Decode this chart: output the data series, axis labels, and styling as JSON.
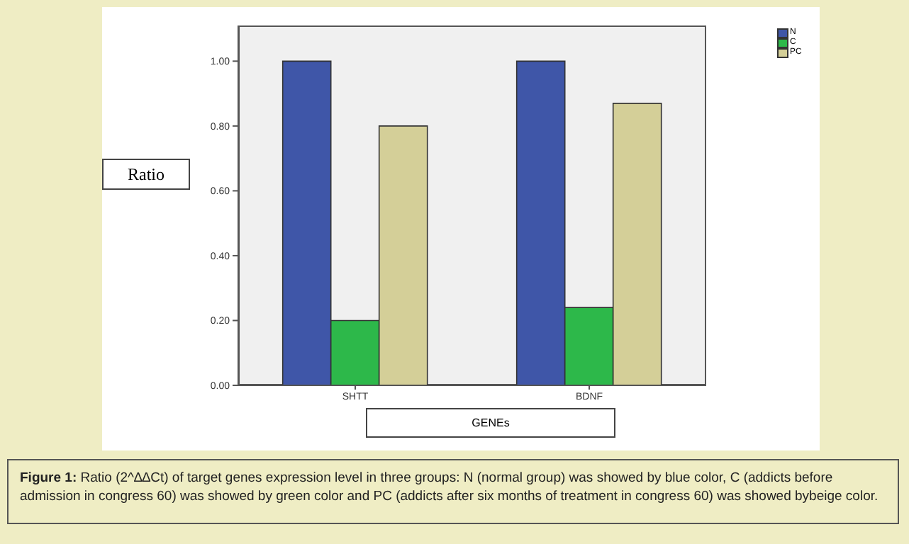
{
  "chart_data": {
    "type": "bar",
    "xlabel": "GENEs",
    "ylabel": "Ratio",
    "categories": [
      "SHTT",
      "BDNF"
    ],
    "series": [
      {
        "name": "N",
        "color": "#3f56a8",
        "values": [
          1.0,
          1.0
        ]
      },
      {
        "name": "C",
        "color": "#2db84a",
        "values": [
          0.2,
          0.24
        ]
      },
      {
        "name": "PC",
        "color": "#d4cf98",
        "values": [
          0.8,
          0.87
        ]
      }
    ],
    "ylim": [
      0,
      1.11
    ],
    "yticks": [
      {
        "value": 0,
        "label": "0.00"
      },
      {
        "value": 0.2,
        "label": "0.20"
      },
      {
        "value": 0.4,
        "label": "0.40"
      },
      {
        "value": 0.6,
        "label": "0.60"
      },
      {
        "value": 0.8,
        "label": "0.80"
      },
      {
        "value": 1.0,
        "label": "1.00"
      }
    ],
    "legend": "top right",
    "annotations": [
      "Figure 1:",
      "Ratio (2^∆∆Ct) of target genes expression level in three groups: N (normal group) was showed by blue color, C (addicts before admission in congress 60) was showed by green color and PC (addicts after six months of treatment in congress 60) was showed bybeige color."
    ]
  }
}
